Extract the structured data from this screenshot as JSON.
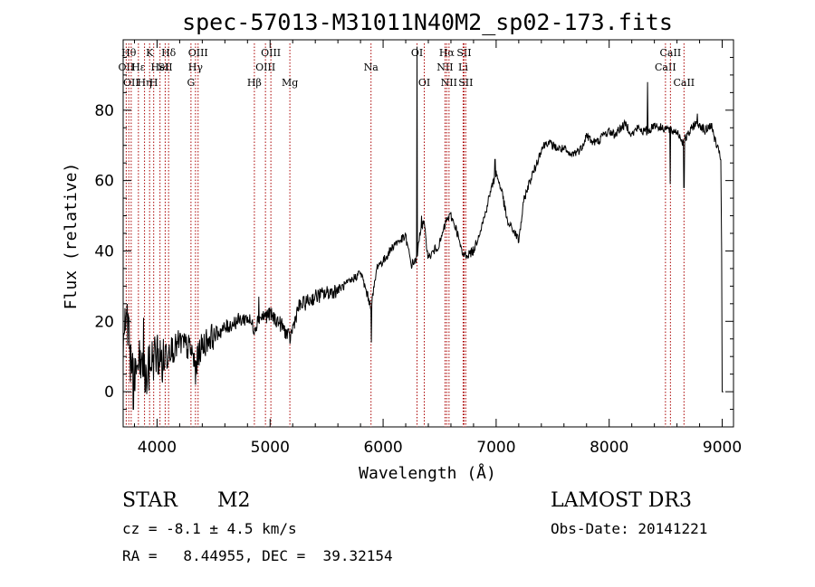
{
  "chart_data": {
    "type": "line",
    "title": "spec-57013-M31011N40M2_sp02-173.fits",
    "xlabel": "Wavelength (Å)",
    "ylabel": "Flux (relative)",
    "xlim": [
      3700,
      9100
    ],
    "ylim": [
      -10,
      100
    ],
    "xticks": [
      4000,
      5000,
      6000,
      7000,
      8000,
      9000
    ],
    "yticks": [
      0,
      20,
      40,
      60,
      80
    ],
    "grid": false,
    "line_color": "#000000",
    "marker_color": "#aa0000",
    "spectrum_anchors": [
      [
        3700,
        15
      ],
      [
        3730,
        20
      ],
      [
        3760,
        10
      ],
      [
        3800,
        6
      ],
      [
        3850,
        8
      ],
      [
        3900,
        3
      ],
      [
        3950,
        9
      ],
      [
        4000,
        11
      ],
      [
        4050,
        8
      ],
      [
        4100,
        13
      ],
      [
        4150,
        12
      ],
      [
        4200,
        14
      ],
      [
        4250,
        13
      ],
      [
        4300,
        12
      ],
      [
        4340,
        7
      ],
      [
        4380,
        12
      ],
      [
        4450,
        15
      ],
      [
        4500,
        16
      ],
      [
        4600,
        18
      ],
      [
        4700,
        20
      ],
      [
        4800,
        21
      ],
      [
        4861,
        18
      ],
      [
        4900,
        21
      ],
      [
        5000,
        22
      ],
      [
        5100,
        19
      ],
      [
        5175,
        15
      ],
      [
        5250,
        24
      ],
      [
        5300,
        25
      ],
      [
        5400,
        27
      ],
      [
        5500,
        28
      ],
      [
        5600,
        29
      ],
      [
        5700,
        31
      ],
      [
        5800,
        34
      ],
      [
        5893,
        24
      ],
      [
        5950,
        36
      ],
      [
        6000,
        37
      ],
      [
        6100,
        42
      ],
      [
        6200,
        44
      ],
      [
        6250,
        36
      ],
      [
        6300,
        38
      ],
      [
        6330,
        46
      ],
      [
        6360,
        48
      ],
      [
        6400,
        38
      ],
      [
        6450,
        40
      ],
      [
        6500,
        42
      ],
      [
        6563,
        49
      ],
      [
        6600,
        50
      ],
      [
        6650,
        46
      ],
      [
        6700,
        39
      ],
      [
        6750,
        39
      ],
      [
        6800,
        40
      ],
      [
        6850,
        45
      ],
      [
        6900,
        50
      ],
      [
        6950,
        57
      ],
      [
        7000,
        62
      ],
      [
        7050,
        57
      ],
      [
        7100,
        48
      ],
      [
        7150,
        46
      ],
      [
        7200,
        43
      ],
      [
        7250,
        55
      ],
      [
        7300,
        60
      ],
      [
        7350,
        64
      ],
      [
        7400,
        69
      ],
      [
        7450,
        71
      ],
      [
        7500,
        70
      ],
      [
        7550,
        69
      ],
      [
        7600,
        69
      ],
      [
        7650,
        67
      ],
      [
        7700,
        68
      ],
      [
        7750,
        69
      ],
      [
        7800,
        73
      ],
      [
        7850,
        71
      ],
      [
        7900,
        71
      ],
      [
        7950,
        73
      ],
      [
        8000,
        74
      ],
      [
        8050,
        73
      ],
      [
        8100,
        75
      ],
      [
        8150,
        76
      ],
      [
        8200,
        73
      ],
      [
        8250,
        75
      ],
      [
        8300,
        74
      ],
      [
        8350,
        74
      ],
      [
        8400,
        76
      ],
      [
        8450,
        75
      ],
      [
        8500,
        75
      ],
      [
        8550,
        74
      ],
      [
        8600,
        74
      ],
      [
        8650,
        71
      ],
      [
        8700,
        73
      ],
      [
        8750,
        76
      ],
      [
        8800,
        76
      ],
      [
        8850,
        74
      ],
      [
        8900,
        76
      ],
      [
        8950,
        70
      ],
      [
        8990,
        66
      ]
    ],
    "spectrum_features": [
      {
        "x": 3750,
        "y": 21
      },
      {
        "x": 3790,
        "y": -5
      },
      {
        "x": 3880,
        "y": 21
      },
      {
        "x": 4340,
        "y": 2
      },
      {
        "x": 4900,
        "y": 27
      },
      {
        "x": 5895,
        "y": 14
      },
      {
        "x": 6300,
        "y": 98
      },
      {
        "x": 6340,
        "y": 50
      },
      {
        "x": 6990,
        "y": 66
      },
      {
        "x": 8340,
        "y": 88
      },
      {
        "x": 8540,
        "y": 59
      },
      {
        "x": 8662,
        "y": 58
      },
      {
        "x": 8780,
        "y": 79
      },
      {
        "x": 9000,
        "y": 0
      }
    ],
    "line_markers": [
      {
        "x": 3727,
        "label": "OII",
        "row": 2
      },
      {
        "x": 3750,
        "label": "Hθ",
        "row": 1
      },
      {
        "x": 3771,
        "label": "OII",
        "row": 3
      },
      {
        "x": 3835,
        "label": "Hε",
        "row": 2
      },
      {
        "x": 3889,
        "label": "Hη",
        "row": 3
      },
      {
        "x": 3934,
        "label": "K",
        "row": 1
      },
      {
        "x": 3970,
        "label": "H",
        "row": 3
      },
      {
        "x": 4026,
        "label": "HeI",
        "row": 2
      },
      {
        "x": 4072,
        "label": "SII",
        "row": 2
      },
      {
        "x": 4102,
        "label": "Hδ",
        "row": 1
      },
      {
        "x": 4300,
        "label": "G",
        "row": 3
      },
      {
        "x": 4340,
        "label": "Hγ",
        "row": 2
      },
      {
        "x": 4363,
        "label": "OIII",
        "row": 1
      },
      {
        "x": 4861,
        "label": "Hβ",
        "row": 3
      },
      {
        "x": 4959,
        "label": "OIII",
        "row": 2
      },
      {
        "x": 5007,
        "label": "OIII",
        "row": 1
      },
      {
        "x": 5175,
        "label": "Mg",
        "row": 3
      },
      {
        "x": 5893,
        "label": "Na",
        "row": 2
      },
      {
        "x": 6300,
        "label": "OI",
        "row": 1
      },
      {
        "x": 6364,
        "label": "OI",
        "row": 3
      },
      {
        "x": 6548,
        "label": "NII",
        "row": 2
      },
      {
        "x": 6563,
        "label": "Hα",
        "row": 1
      },
      {
        "x": 6583,
        "label": "NII",
        "row": 3
      },
      {
        "x": 6708,
        "label": "Li",
        "row": 2
      },
      {
        "x": 6716,
        "label": "SII",
        "row": 1
      },
      {
        "x": 6731,
        "label": "SII",
        "row": 3
      },
      {
        "x": 8498,
        "label": "CaII",
        "row": 2
      },
      {
        "x": 8542,
        "label": "CaII",
        "row": 1
      },
      {
        "x": 8662,
        "label": "CaII",
        "row": 3
      }
    ]
  },
  "info": {
    "class": "STAR",
    "subclass": "M2",
    "survey": "LAMOST DR3",
    "cz": "cz = -8.1 ± 4.5 km/s",
    "obs_date": "Obs-Date: 20141221",
    "radec": "RA =   8.44955, DEC =  39.32154"
  }
}
